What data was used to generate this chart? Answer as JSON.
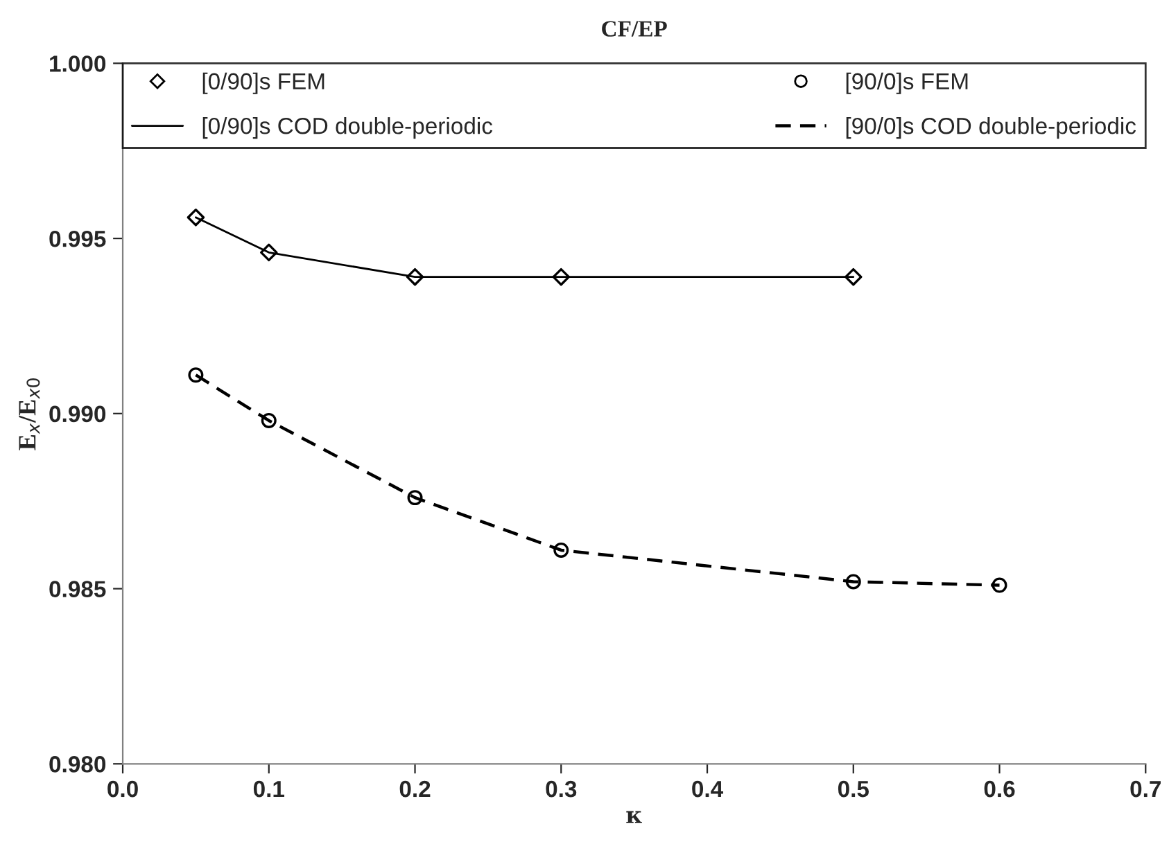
{
  "chart_data": {
    "type": "scatter",
    "title": "CF/EP",
    "xlabel": "κ",
    "ylabel": "E$_{x}$/E$_{x0}$",
    "xlim": [
      0.0,
      0.7
    ],
    "xticks": [
      {
        "value": 0,
        "label": "0.0"
      },
      {
        "value": 0.1,
        "label": "0.1"
      },
      {
        "value": 0.2,
        "label": "0.2"
      },
      {
        "value": 0.3,
        "label": "0.3"
      },
      {
        "value": 0.4,
        "label": "0.4"
      },
      {
        "value": 0.5,
        "label": "0.5"
      },
      {
        "value": 0.6,
        "label": "0.6"
      },
      {
        "value": 0.7,
        "label": "0.7"
      }
    ],
    "ylim": [
      0.98,
      1.0
    ],
    "yticks": [
      {
        "value": 0.98,
        "label": "0.980"
      },
      {
        "value": 0.985,
        "label": "0.985"
      },
      {
        "value": 0.99,
        "label": "0.990"
      },
      {
        "value": 0.995,
        "label": "0.995"
      },
      {
        "value": 1.0,
        "label": "1.000"
      }
    ],
    "grid": false,
    "legend": "top",
    "series": [
      {
        "name": "[0/90]s FEM",
        "marker": "diamond",
        "color": "#000000",
        "x": [
          0.05,
          0.1,
          0.2,
          0.3,
          0.5
        ],
        "values": [
          0.9956,
          0.9946,
          0.9939,
          0.9939,
          0.9939
        ]
      },
      {
        "name": "[0/90]s COD double-periodic",
        "type": "line",
        "marker": "none",
        "line_style": "solid",
        "color": "#000000",
        "x": [
          0.05,
          0.1,
          0.2,
          0.3,
          0.5
        ],
        "values": [
          0.9956,
          0.9946,
          0.9939,
          0.9939,
          0.9939
        ]
      },
      {
        "name": "[90/0]s FEM",
        "marker": "circle",
        "color": "#000000",
        "x": [
          0.05,
          0.1,
          0.2,
          0.3,
          0.5,
          0.6
        ],
        "values": [
          0.9911,
          0.9898,
          0.9876,
          0.9861,
          0.9852,
          0.9851
        ]
      },
      {
        "name": "[90/0]s COD double-periodic",
        "type": "line",
        "marker": "none",
        "line_style": "dashed",
        "color": "#000000",
        "x": [
          0.05,
          0.1,
          0.2,
          0.3,
          0.5,
          0.6
        ],
        "values": [
          0.9911,
          0.9898,
          0.9876,
          0.9861,
          0.9852,
          0.9851
        ]
      }
    ]
  }
}
